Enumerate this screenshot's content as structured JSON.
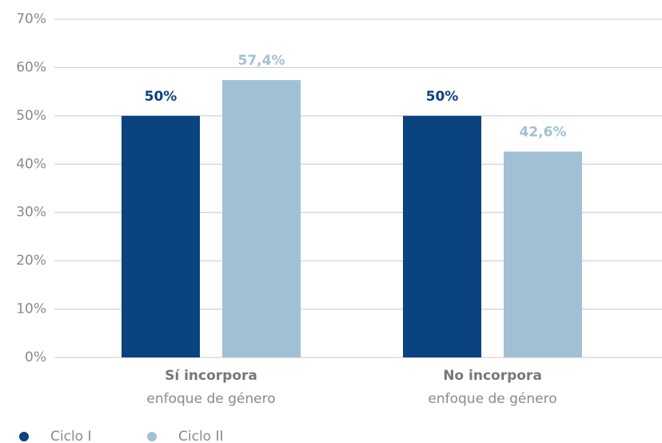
{
  "chart_data": {
    "type": "bar",
    "categories": [
      [
        "Sí incorpora",
        "enfoque de género"
      ],
      [
        "No incorpora",
        "enfoque de género"
      ]
    ],
    "series": [
      {
        "name": "Ciclo I",
        "color": "#0b4280",
        "values": [
          50,
          50
        ],
        "value_labels": [
          "50%",
          "50%"
        ]
      },
      {
        "name": "Ciclo II",
        "color": "#a0c1d4",
        "values": [
          57.4,
          42.6
        ],
        "value_labels": [
          "57,4%",
          "42,6%"
        ]
      }
    ],
    "ylim": [
      0,
      70
    ],
    "yticks": [
      {
        "value": 0,
        "label": "0%"
      },
      {
        "value": 10,
        "label": "10%"
      },
      {
        "value": 20,
        "label": "20%"
      },
      {
        "value": 30,
        "label": "30%"
      },
      {
        "value": 40,
        "label": "40%"
      },
      {
        "value": 50,
        "label": "50%"
      },
      {
        "value": 60,
        "label": "60%"
      },
      {
        "value": 70,
        "label": "70%"
      }
    ],
    "grid": true,
    "legend": "bottom-left"
  }
}
